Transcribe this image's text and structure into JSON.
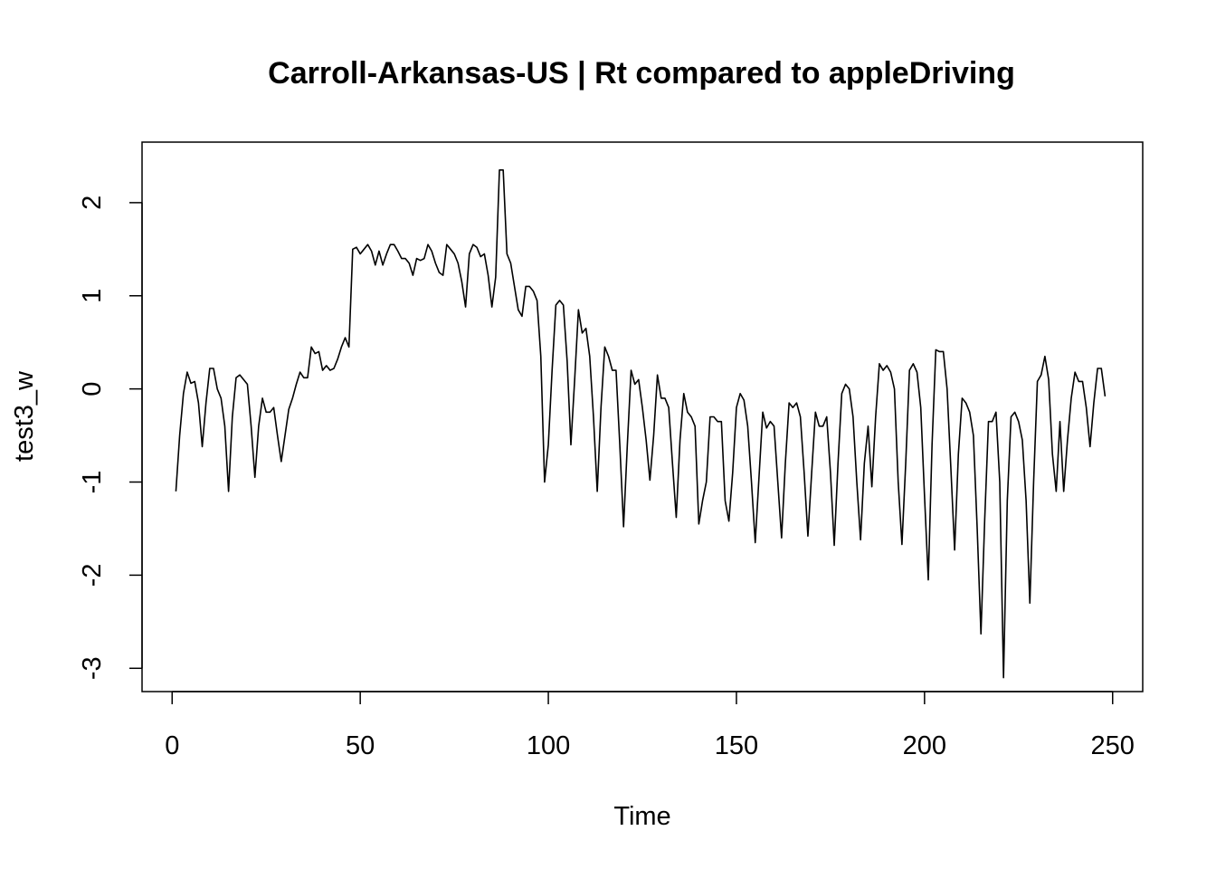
{
  "chart_data": {
    "type": "line",
    "title": "Carroll-Arkansas-US | Rt compared to appleDriving",
    "xlabel": "Time",
    "ylabel": "test3_w",
    "xlim": [
      -8,
      258
    ],
    "ylim": [
      -3.25,
      2.65
    ],
    "xticks": [
      0,
      50,
      100,
      150,
      200,
      250
    ],
    "yticks": [
      -3,
      -2,
      -1,
      0,
      1,
      2
    ],
    "xtick_labels": [
      "0",
      "50",
      "100",
      "150",
      "200",
      "250"
    ],
    "ytick_labels": [
      "-3",
      "-2",
      "-1",
      "0",
      "1",
      "2"
    ],
    "grid": false,
    "legend": "none",
    "line_color": "#000000",
    "x_start": 1,
    "values": [
      -1.1,
      -0.5,
      -0.05,
      0.18,
      0.06,
      0.08,
      -0.15,
      -0.62,
      -0.15,
      0.22,
      0.22,
      0.0,
      -0.1,
      -0.4,
      -1.1,
      -0.3,
      0.12,
      0.15,
      0.1,
      0.05,
      -0.4,
      -0.95,
      -0.4,
      -0.1,
      -0.25,
      -0.25,
      -0.2,
      -0.5,
      -0.78,
      -0.5,
      -0.22,
      -0.1,
      0.05,
      0.18,
      0.12,
      0.12,
      0.45,
      0.38,
      0.4,
      0.2,
      0.25,
      0.2,
      0.22,
      0.32,
      0.45,
      0.55,
      0.45,
      1.5,
      1.52,
      1.45,
      1.5,
      1.55,
      1.48,
      1.33,
      1.48,
      1.33,
      1.45,
      1.55,
      1.55,
      1.48,
      1.4,
      1.4,
      1.35,
      1.22,
      1.4,
      1.38,
      1.4,
      1.55,
      1.48,
      1.35,
      1.25,
      1.22,
      1.55,
      1.5,
      1.45,
      1.35,
      1.15,
      0.88,
      1.45,
      1.55,
      1.52,
      1.42,
      1.45,
      1.22,
      0.88,
      1.2,
      2.35,
      2.35,
      1.45,
      1.35,
      1.1,
      0.85,
      0.78,
      1.1,
      1.1,
      1.05,
      0.95,
      0.35,
      -1.0,
      -0.6,
      0.2,
      0.9,
      0.95,
      0.9,
      0.3,
      -0.6,
      0.1,
      0.85,
      0.6,
      0.65,
      0.35,
      -0.3,
      -1.1,
      -0.2,
      0.45,
      0.35,
      0.2,
      0.2,
      -0.6,
      -1.48,
      -0.6,
      0.2,
      0.05,
      0.1,
      -0.2,
      -0.55,
      -0.98,
      -0.5,
      0.15,
      -0.1,
      -0.1,
      -0.2,
      -0.8,
      -1.38,
      -0.55,
      -0.05,
      -0.25,
      -0.3,
      -0.4,
      -1.45,
      -1.2,
      -1.0,
      -0.3,
      -0.3,
      -0.35,
      -0.35,
      -1.2,
      -1.42,
      -0.9,
      -0.2,
      -0.05,
      -0.12,
      -0.4,
      -1.0,
      -1.65,
      -0.95,
      -0.25,
      -0.42,
      -0.35,
      -0.4,
      -1.0,
      -1.6,
      -0.8,
      -0.15,
      -0.2,
      -0.15,
      -0.3,
      -0.9,
      -1.58,
      -0.9,
      -0.25,
      -0.4,
      -0.4,
      -0.3,
      -0.9,
      -1.68,
      -0.8,
      -0.05,
      0.05,
      0.0,
      -0.3,
      -1.0,
      -1.62,
      -0.8,
      -0.4,
      -1.05,
      -0.3,
      0.27,
      0.2,
      0.25,
      0.18,
      0.0,
      -1.0,
      -1.67,
      -0.8,
      0.2,
      0.27,
      0.18,
      -0.2,
      -1.15,
      -2.05,
      -0.6,
      0.42,
      0.4,
      0.4,
      0.0,
      -0.85,
      -1.73,
      -0.7,
      -0.1,
      -0.15,
      -0.25,
      -0.5,
      -1.5,
      -2.63,
      -1.4,
      -0.35,
      -0.35,
      -0.25,
      -1.0,
      -3.1,
      -1.2,
      -0.3,
      -0.25,
      -0.35,
      -0.55,
      -1.2,
      -2.3,
      -1.0,
      0.08,
      0.15,
      0.35,
      0.1,
      -0.7,
      -1.1,
      -0.35,
      -1.1,
      -0.55,
      -0.1,
      0.18,
      0.08,
      0.08,
      -0.2,
      -0.62,
      -0.15,
      0.22,
      0.22,
      -0.08
    ]
  }
}
